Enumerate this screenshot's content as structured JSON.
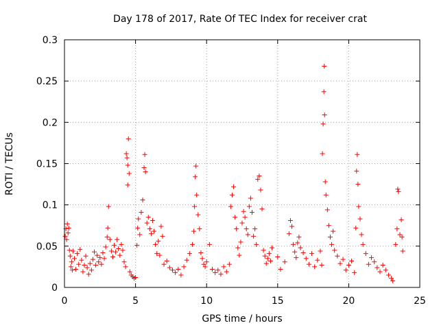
{
  "chart_data": {
    "type": "scatter",
    "title": "Day 178 of 2017, Rate Of TEC Index for receiver crat",
    "xlabel": "GPS time / hours",
    "ylabel": "ROTI / TECUs",
    "xlim": [
      0,
      25
    ],
    "ylim": [
      0,
      0.3
    ],
    "x_ticks": [
      0,
      5,
      10,
      15,
      20,
      25
    ],
    "y_ticks": [
      0,
      0.05,
      0.1,
      0.15,
      0.2,
      0.25,
      0.3
    ],
    "x_tick_labels": [
      "0",
      "5",
      "10",
      "15",
      "20",
      "25"
    ],
    "y_tick_labels": [
      "0",
      "0.05",
      "0.1",
      "0.15",
      "0.2",
      "0.25",
      "0.3"
    ],
    "grid": true,
    "marker": "+",
    "color": "#ff0000",
    "series": [
      {
        "points": [
          [
            0.05,
            0.062
          ],
          [
            0.1,
            0.071
          ],
          [
            0.15,
            0.058
          ],
          [
            0.2,
            0.077
          ],
          [
            0.25,
            0.066
          ],
          [
            0.3,
            0.072
          ],
          [
            0.35,
            0.045
          ],
          [
            0.4,
            0.038
          ],
          [
            0.45,
            0.025
          ],
          [
            0.5,
            0.031
          ],
          [
            0.55,
            0.021
          ],
          [
            0.6,
            0.044
          ],
          [
            0.7,
            0.035
          ],
          [
            0.8,
            0.022
          ],
          [
            0.9,
            0.041
          ],
          [
            1.0,
            0.028
          ],
          [
            1.1,
            0.046
          ],
          [
            1.2,
            0.033
          ],
          [
            1.3,
            0.019
          ],
          [
            1.4,
            0.027
          ],
          [
            1.5,
            0.038
          ],
          [
            1.6,
            0.024
          ],
          [
            1.7,
            0.016
          ],
          [
            1.8,
            0.029
          ],
          [
            1.9,
            0.021
          ],
          [
            2.0,
            0.034
          ],
          [
            2.1,
            0.043
          ],
          [
            2.2,
            0.027
          ],
          [
            2.3,
            0.039
          ],
          [
            2.4,
            0.031
          ],
          [
            2.5,
            0.036
          ],
          [
            2.6,
            0.028
          ],
          [
            2.7,
            0.042
          ],
          [
            2.8,
            0.035
          ],
          [
            2.9,
            0.049
          ],
          [
            3.0,
            0.061
          ],
          [
            3.05,
            0.072
          ],
          [
            3.1,
            0.098
          ],
          [
            3.2,
            0.058
          ],
          [
            3.3,
            0.044
          ],
          [
            3.4,
            0.037
          ],
          [
            3.5,
            0.051
          ],
          [
            3.6,
            0.043
          ],
          [
            3.7,
            0.058
          ],
          [
            3.8,
            0.047
          ],
          [
            3.9,
            0.039
          ],
          [
            4.0,
            0.052
          ],
          [
            4.1,
            0.045
          ],
          [
            4.2,
            0.031
          ],
          [
            4.3,
            0.025
          ],
          [
            4.35,
            0.162
          ],
          [
            4.4,
            0.157
          ],
          [
            4.45,
            0.148
          ],
          [
            4.5,
            0.18
          ],
          [
            4.55,
            0.138
          ],
          [
            4.45,
            0.124
          ],
          [
            4.6,
            0.019
          ],
          [
            4.7,
            0.015
          ],
          [
            4.8,
            0.013
          ],
          [
            4.9,
            0.011
          ],
          [
            5.0,
            0.012
          ],
          [
            5.1,
            0.051
          ],
          [
            5.15,
            0.072
          ],
          [
            5.2,
            0.083
          ],
          [
            5.3,
            0.064
          ],
          [
            5.4,
            0.091
          ],
          [
            5.5,
            0.106
          ],
          [
            5.6,
            0.145
          ],
          [
            5.65,
            0.161
          ],
          [
            5.7,
            0.14
          ],
          [
            5.8,
            0.078
          ],
          [
            5.9,
            0.085
          ],
          [
            6.0,
            0.071
          ],
          [
            6.1,
            0.065
          ],
          [
            6.2,
            0.081
          ],
          [
            6.3,
            0.068
          ],
          [
            6.4,
            0.052
          ],
          [
            6.5,
            0.041
          ],
          [
            6.6,
            0.056
          ],
          [
            6.7,
            0.039
          ],
          [
            6.8,
            0.074
          ],
          [
            6.9,
            0.062
          ],
          [
            7.0,
            0.028
          ],
          [
            7.2,
            0.032
          ],
          [
            7.4,
            0.024
          ],
          [
            7.6,
            0.021
          ],
          [
            7.8,
            0.018
          ],
          [
            8.0,
            0.022
          ],
          [
            8.2,
            0.015
          ],
          [
            8.4,
            0.025
          ],
          [
            8.6,
            0.033
          ],
          [
            8.8,
            0.041
          ],
          [
            9.0,
            0.052
          ],
          [
            9.1,
            0.068
          ],
          [
            9.15,
            0.098
          ],
          [
            9.2,
            0.134
          ],
          [
            9.25,
            0.147
          ],
          [
            9.3,
            0.112
          ],
          [
            9.4,
            0.088
          ],
          [
            9.5,
            0.071
          ],
          [
            9.6,
            0.042
          ],
          [
            9.7,
            0.035
          ],
          [
            9.8,
            0.028
          ],
          [
            9.9,
            0.025
          ],
          [
            10.0,
            0.031
          ],
          [
            10.2,
            0.052
          ],
          [
            10.4,
            0.022
          ],
          [
            10.6,
            0.018
          ],
          [
            10.8,
            0.021
          ],
          [
            11.0,
            0.016
          ],
          [
            11.2,
            0.025
          ],
          [
            11.4,
            0.019
          ],
          [
            11.6,
            0.028
          ],
          [
            11.7,
            0.098
          ],
          [
            11.8,
            0.112
          ],
          [
            11.9,
            0.122
          ],
          [
            12.0,
            0.085
          ],
          [
            12.1,
            0.071
          ],
          [
            12.2,
            0.048
          ],
          [
            12.3,
            0.039
          ],
          [
            12.4,
            0.055
          ],
          [
            12.5,
            0.078
          ],
          [
            12.6,
            0.092
          ],
          [
            12.7,
            0.085
          ],
          [
            12.8,
            0.071
          ],
          [
            12.9,
            0.064
          ],
          [
            13.0,
            0.098
          ],
          [
            13.1,
            0.108
          ],
          [
            13.2,
            0.091
          ],
          [
            13.3,
            0.062
          ],
          [
            13.4,
            0.071
          ],
          [
            13.5,
            0.052
          ],
          [
            13.6,
            0.131
          ],
          [
            13.7,
            0.135
          ],
          [
            13.8,
            0.118
          ],
          [
            13.9,
            0.095
          ],
          [
            14.0,
            0.045
          ],
          [
            14.1,
            0.038
          ],
          [
            14.2,
            0.029
          ],
          [
            14.3,
            0.035
          ],
          [
            14.4,
            0.041
          ],
          [
            14.5,
            0.032
          ],
          [
            14.6,
            0.048
          ],
          [
            15.0,
            0.037
          ],
          [
            15.2,
            0.022
          ],
          [
            15.5,
            0.031
          ],
          [
            15.8,
            0.065
          ],
          [
            15.9,
            0.081
          ],
          [
            16.0,
            0.074
          ],
          [
            16.1,
            0.052
          ],
          [
            16.2,
            0.043
          ],
          [
            16.3,
            0.036
          ],
          [
            16.4,
            0.054
          ],
          [
            16.5,
            0.061
          ],
          [
            16.6,
            0.048
          ],
          [
            16.8,
            0.042
          ],
          [
            17.0,
            0.035
          ],
          [
            17.2,
            0.028
          ],
          [
            17.4,
            0.041
          ],
          [
            17.6,
            0.025
          ],
          [
            17.8,
            0.033
          ],
          [
            18.0,
            0.044
          ],
          [
            18.1,
            0.027
          ],
          [
            18.15,
            0.162
          ],
          [
            18.2,
            0.198
          ],
          [
            18.25,
            0.237
          ],
          [
            18.28,
            0.268
          ],
          [
            18.3,
            0.209
          ],
          [
            18.35,
            0.128
          ],
          [
            18.4,
            0.112
          ],
          [
            18.5,
            0.094
          ],
          [
            18.6,
            0.075
          ],
          [
            18.7,
            0.061
          ],
          [
            18.8,
            0.052
          ],
          [
            18.9,
            0.068
          ],
          [
            19.0,
            0.045
          ],
          [
            19.2,
            0.038
          ],
          [
            19.4,
            0.029
          ],
          [
            19.6,
            0.034
          ],
          [
            19.8,
            0.021
          ],
          [
            20.0,
            0.027
          ],
          [
            20.2,
            0.032
          ],
          [
            20.4,
            0.018
          ],
          [
            20.5,
            0.072
          ],
          [
            20.55,
            0.141
          ],
          [
            20.6,
            0.161
          ],
          [
            20.65,
            0.125
          ],
          [
            20.7,
            0.098
          ],
          [
            20.8,
            0.083
          ],
          [
            20.9,
            0.064
          ],
          [
            21.0,
            0.052
          ],
          [
            21.2,
            0.041
          ],
          [
            21.4,
            0.028
          ],
          [
            21.6,
            0.036
          ],
          [
            21.8,
            0.031
          ],
          [
            22.0,
            0.024
          ],
          [
            22.2,
            0.019
          ],
          [
            22.4,
            0.027
          ],
          [
            22.6,
            0.021
          ],
          [
            22.8,
            0.015
          ],
          [
            23.0,
            0.011
          ],
          [
            23.1,
            0.008
          ],
          [
            23.3,
            0.052
          ],
          [
            23.4,
            0.071
          ],
          [
            23.45,
            0.119
          ],
          [
            23.5,
            0.116
          ],
          [
            23.6,
            0.064
          ],
          [
            23.7,
            0.082
          ],
          [
            23.75,
            0.061
          ],
          [
            23.8,
            0.044
          ]
        ]
      }
    ]
  }
}
